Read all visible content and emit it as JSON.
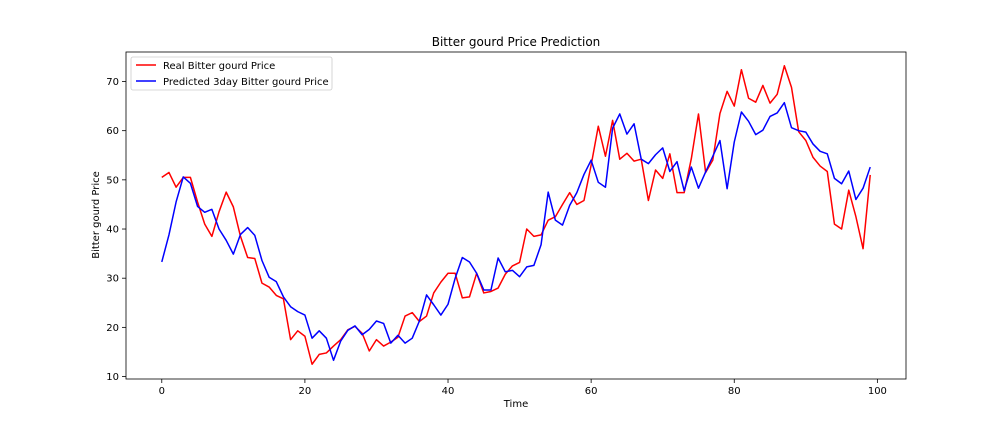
{
  "chart_data": {
    "type": "line",
    "title": "Bitter gourd Price Prediction",
    "xlabel": "Time",
    "ylabel": "Bitter gourd Price",
    "xlim": [
      -5,
      104
    ],
    "ylim": [
      9.5,
      76
    ],
    "xticks": [
      0,
      20,
      40,
      60,
      80,
      100
    ],
    "yticks": [
      10,
      20,
      30,
      40,
      50,
      60,
      70
    ],
    "grid": false,
    "legend_position": "top-left",
    "series": [
      {
        "name": "Real Bitter gourd Price",
        "color": "#ff0000",
        "values": [
          50.5,
          51.5,
          48.5,
          50.5,
          50.5,
          45.5,
          41.0,
          38.5,
          43.5,
          47.5,
          44.5,
          38.5,
          34.2,
          34.0,
          29.0,
          28.2,
          26.5,
          25.8,
          17.5,
          19.3,
          18.2,
          12.5,
          14.5,
          14.8,
          16.2,
          17.5,
          19.5,
          20.2,
          18.8,
          15.2,
          17.5,
          16.2,
          17.0,
          18.0,
          22.3,
          23.0,
          21.2,
          22.3,
          27.0,
          29.2,
          31.0,
          31.0,
          26.0,
          26.2,
          31.0,
          27.0,
          27.3,
          28.0,
          30.8,
          32.5,
          33.2,
          40.0,
          38.5,
          38.8,
          41.8,
          42.5,
          45.0,
          47.4,
          45.0,
          45.8,
          53.0,
          60.9,
          54.8,
          62.1,
          54.2,
          55.4,
          53.8,
          54.2,
          45.8,
          52.0,
          50.3,
          55.3,
          47.4,
          47.4,
          54.3,
          63.4,
          51.5,
          54.0,
          63.5,
          68.0,
          65.0,
          72.4,
          66.6,
          65.8,
          69.2,
          65.6,
          67.4,
          73.2,
          68.8,
          59.8,
          58.0,
          54.6,
          52.8,
          51.7,
          41.0,
          40.0,
          47.9,
          42.5,
          36.0,
          51.0
        ]
      },
      {
        "name": "Predicted 3day Bitter gourd Price",
        "color": "#0000ff",
        "values": [
          33.3,
          38.8,
          45.5,
          50.6,
          49.3,
          44.6,
          43.4,
          44.0,
          40.0,
          37.7,
          34.9,
          38.9,
          40.3,
          38.7,
          33.6,
          30.2,
          29.3,
          26.2,
          24.2,
          23.2,
          22.5,
          17.8,
          19.3,
          17.8,
          13.3,
          17.2,
          19.4,
          20.3,
          18.5,
          19.6,
          21.3,
          20.8,
          16.8,
          18.4,
          16.8,
          17.8,
          21.3,
          26.6,
          24.6,
          22.5,
          24.7,
          30.0,
          34.2,
          33.3,
          31.0,
          27.6,
          27.6,
          34.1,
          31.3,
          31.6,
          30.3,
          32.3,
          32.6,
          36.8,
          47.5,
          41.8,
          40.8,
          44.8,
          47.4,
          51.1,
          54.0,
          49.5,
          48.5,
          60.5,
          63.4,
          59.3,
          61.4,
          54.2,
          53.3,
          55.1,
          56.5,
          51.7,
          53.7,
          47.8,
          52.6,
          48.3,
          51.6,
          54.8,
          58.0,
          48.2,
          57.7,
          63.8,
          61.9,
          59.2,
          60.1,
          62.9,
          63.6,
          65.7,
          60.6,
          60.0,
          59.7,
          57.3,
          55.8,
          55.3,
          50.3,
          49.2,
          51.8,
          46.0,
          48.3,
          52.6
        ]
      }
    ]
  }
}
